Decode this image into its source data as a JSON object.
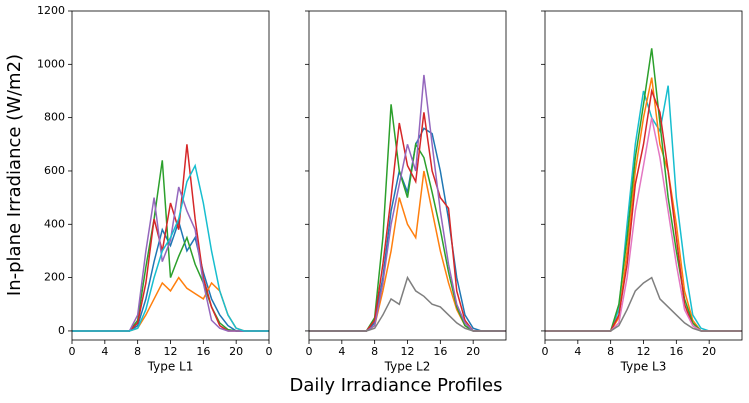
{
  "figure": {
    "ylabel": "In-plane Irradiance (W/m2)",
    "xlabel": "Daily Irradiance Profiles"
  },
  "chart_data": [
    {
      "type": "line",
      "xlabel": "Type L1",
      "x": [
        0,
        1,
        2,
        3,
        4,
        5,
        6,
        7,
        8,
        9,
        10,
        11,
        12,
        13,
        14,
        15,
        16,
        17,
        18,
        19,
        20,
        21,
        22,
        23,
        24
      ],
      "xlim": [
        0,
        24
      ],
      "ylim": [
        -34,
        1200
      ],
      "xticks": [
        0,
        4,
        8,
        12,
        16,
        20,
        {
          "value": 24,
          "label": "0"
        }
      ],
      "yticks": [
        0,
        200,
        400,
        600,
        800,
        1000,
        1200
      ],
      "show_ytick_labels": true,
      "series": [
        {
          "color": "#1f77b4",
          "values": [
            0,
            0,
            0,
            0,
            0,
            0,
            0,
            0,
            20,
            120,
            260,
            380,
            320,
            410,
            300,
            350,
            220,
            120,
            60,
            20,
            0,
            0,
            0,
            0,
            0
          ]
        },
        {
          "color": "#ff7f0e",
          "values": [
            0,
            0,
            0,
            0,
            0,
            0,
            0,
            0,
            10,
            60,
            120,
            180,
            150,
            200,
            160,
            140,
            120,
            180,
            150,
            60,
            10,
            0,
            0,
            0,
            0
          ]
        },
        {
          "color": "#2ca02c",
          "values": [
            0,
            0,
            0,
            0,
            0,
            0,
            0,
            0,
            40,
            240,
            420,
            640,
            200,
            280,
            350,
            250,
            180,
            90,
            30,
            5,
            0,
            0,
            0,
            0,
            0
          ]
        },
        {
          "color": "#d62728",
          "values": [
            0,
            0,
            0,
            0,
            0,
            0,
            0,
            0,
            30,
            180,
            420,
            300,
            480,
            380,
            700,
            420,
            200,
            90,
            20,
            0,
            0,
            0,
            0,
            0,
            0
          ]
        },
        {
          "color": "#9467bd",
          "values": [
            0,
            0,
            0,
            0,
            0,
            0,
            0,
            0,
            60,
            300,
            500,
            260,
            340,
            540,
            450,
            380,
            180,
            40,
            10,
            0,
            0,
            0,
            0,
            0,
            0
          ]
        },
        {
          "color": "#17becf",
          "values": [
            0,
            0,
            0,
            0,
            0,
            0,
            0,
            0,
            10,
            80,
            200,
            300,
            350,
            420,
            560,
            620,
            480,
            300,
            150,
            60,
            10,
            0,
            0,
            0,
            0
          ]
        }
      ]
    },
    {
      "type": "line",
      "xlabel": "Type L2",
      "x": [
        0,
        1,
        2,
        3,
        4,
        5,
        6,
        7,
        8,
        9,
        10,
        11,
        12,
        13,
        14,
        15,
        16,
        17,
        18,
        19,
        20,
        21,
        22,
        23,
        24
      ],
      "xlim": [
        0,
        24
      ],
      "ylim": [
        -34,
        1200
      ],
      "xticks": [
        0,
        4,
        8,
        12,
        16,
        20
      ],
      "yticks": [
        0,
        200,
        400,
        600,
        800,
        1000,
        1200
      ],
      "show_ytick_labels": false,
      "series": [
        {
          "color": "#1f77b4",
          "values": [
            0,
            0,
            0,
            0,
            0,
            0,
            0,
            0,
            30,
            200,
            450,
            600,
            520,
            700,
            760,
            740,
            600,
            420,
            200,
            60,
            10,
            0,
            0,
            0,
            0
          ]
        },
        {
          "color": "#ff7f0e",
          "values": [
            0,
            0,
            0,
            0,
            0,
            0,
            0,
            0,
            20,
            150,
            300,
            500,
            400,
            350,
            600,
            450,
            300,
            180,
            80,
            20,
            0,
            0,
            0,
            0,
            0
          ]
        },
        {
          "color": "#2ca02c",
          "values": [
            0,
            0,
            0,
            0,
            0,
            0,
            0,
            0,
            50,
            350,
            850,
            600,
            500,
            700,
            650,
            520,
            380,
            220,
            90,
            20,
            0,
            0,
            0,
            0,
            0
          ]
        },
        {
          "color": "#d62728",
          "values": [
            0,
            0,
            0,
            0,
            0,
            0,
            0,
            0,
            40,
            250,
            500,
            780,
            620,
            560,
            820,
            600,
            500,
            460,
            150,
            40,
            0,
            0,
            0,
            0,
            0
          ]
        },
        {
          "color": "#9467bd",
          "values": [
            0,
            0,
            0,
            0,
            0,
            0,
            0,
            0,
            20,
            180,
            400,
            550,
            700,
            600,
            960,
            700,
            450,
            250,
            100,
            30,
            0,
            0,
            0,
            0,
            0
          ]
        },
        {
          "color": "#7f7f7f",
          "values": [
            0,
            0,
            0,
            0,
            0,
            0,
            0,
            0,
            10,
            60,
            120,
            100,
            200,
            150,
            130,
            100,
            90,
            60,
            30,
            10,
            0,
            0,
            0,
            0,
            0
          ]
        }
      ]
    },
    {
      "type": "line",
      "xlabel": "Type L3",
      "x": [
        0,
        1,
        2,
        3,
        4,
        5,
        6,
        7,
        8,
        9,
        10,
        11,
        12,
        13,
        14,
        15,
        16,
        17,
        18,
        19,
        20,
        21,
        22,
        23,
        24
      ],
      "xlim": [
        0,
        24
      ],
      "ylim": [
        -34,
        1200
      ],
      "xticks": [
        0,
        4,
        8,
        12,
        16,
        20
      ],
      "yticks": [
        0,
        200,
        400,
        600,
        800,
        1000,
        1200
      ],
      "show_ytick_labels": false,
      "series": [
        {
          "color": "#17becf",
          "values": [
            0,
            0,
            0,
            0,
            0,
            0,
            0,
            0,
            0,
            80,
            400,
            700,
            900,
            800,
            750,
            920,
            500,
            250,
            60,
            10,
            0,
            0,
            0,
            0,
            0
          ]
        },
        {
          "color": "#ff7f0e",
          "values": [
            0,
            0,
            0,
            0,
            0,
            0,
            0,
            0,
            0,
            50,
            300,
            600,
            800,
            950,
            700,
            600,
            400,
            150,
            40,
            0,
            0,
            0,
            0,
            0,
            0
          ]
        },
        {
          "color": "#2ca02c",
          "values": [
            0,
            0,
            0,
            0,
            0,
            0,
            0,
            0,
            0,
            100,
            350,
            650,
            850,
            1060,
            780,
            500,
            300,
            120,
            30,
            0,
            0,
            0,
            0,
            0,
            0
          ]
        },
        {
          "color": "#d62728",
          "values": [
            0,
            0,
            0,
            0,
            0,
            0,
            0,
            0,
            0,
            60,
            250,
            550,
            700,
            900,
            820,
            600,
            350,
            100,
            20,
            0,
            0,
            0,
            0,
            0,
            0
          ]
        },
        {
          "color": "#e377c2",
          "values": [
            0,
            0,
            0,
            0,
            0,
            0,
            0,
            0,
            0,
            30,
            200,
            450,
            620,
            800,
            650,
            450,
            250,
            80,
            20,
            0,
            0,
            0,
            0,
            0,
            0
          ]
        },
        {
          "color": "#7f7f7f",
          "values": [
            0,
            0,
            0,
            0,
            0,
            0,
            0,
            0,
            0,
            20,
            80,
            150,
            180,
            200,
            120,
            90,
            60,
            30,
            10,
            0,
            0,
            0,
            0,
            0,
            0
          ]
        }
      ]
    }
  ]
}
